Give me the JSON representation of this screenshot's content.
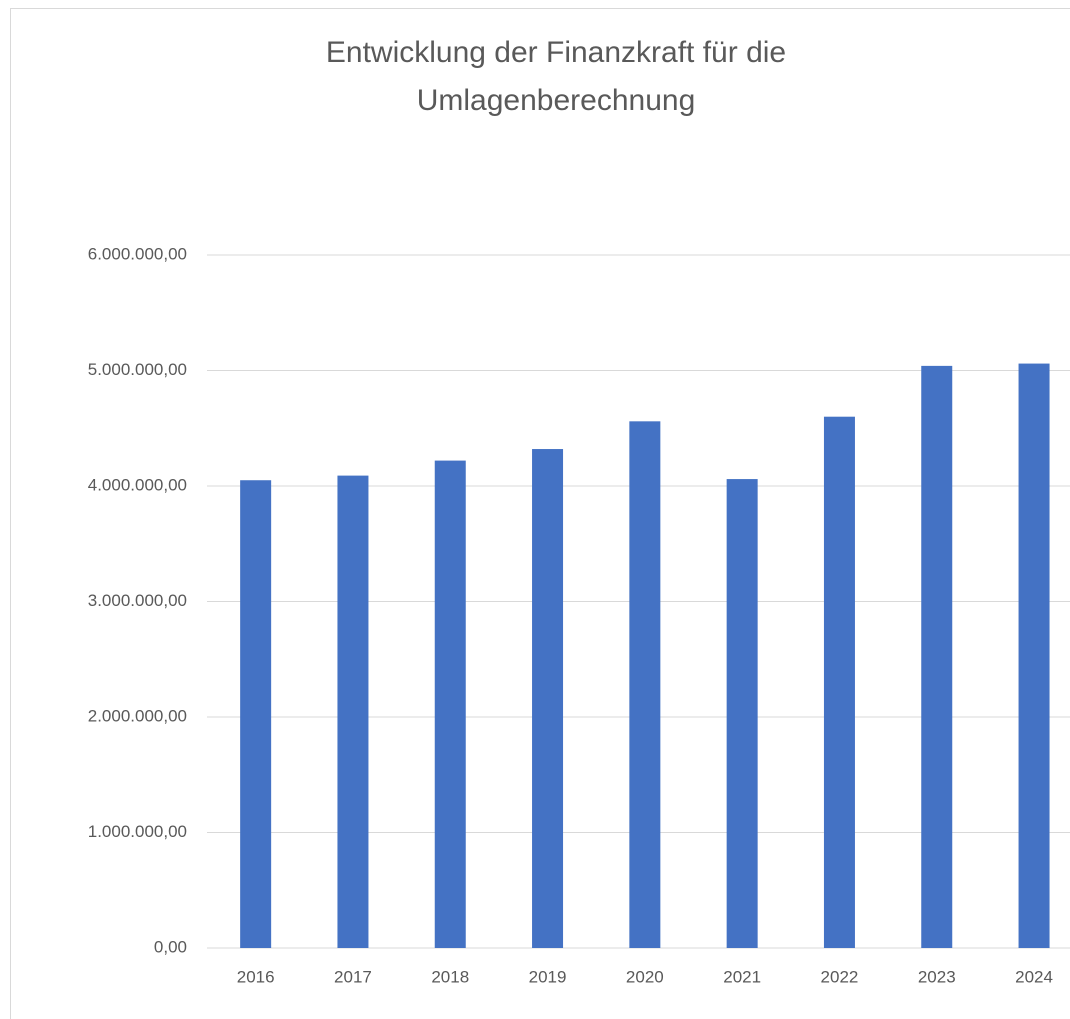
{
  "chart_data": {
    "type": "bar",
    "title": [
      "Entwicklung der Finanzkraft für die",
      "Umlagenberechnung"
    ],
    "categories": [
      "2016",
      "2017",
      "2018",
      "2019",
      "2020",
      "2021",
      "2022",
      "2023",
      "2024"
    ],
    "values": [
      4050000,
      4090000,
      4220000,
      4320000,
      4560000,
      4060000,
      4600000,
      5040000,
      5060000
    ],
    "color": "#4472c4",
    "ylim": [
      0,
      6000000
    ],
    "yticks": [
      {
        "value": 0,
        "label": "0,00"
      },
      {
        "value": 1000000,
        "label": "1.000.000,00"
      },
      {
        "value": 2000000,
        "label": "2.000.000,00"
      },
      {
        "value": 3000000,
        "label": "3.000.000,00"
      },
      {
        "value": 4000000,
        "label": "4.000.000,00"
      },
      {
        "value": 5000000,
        "label": "5.000.000,00"
      },
      {
        "value": 6000000,
        "label": "6.000.000,00"
      }
    ],
    "grid": true
  }
}
